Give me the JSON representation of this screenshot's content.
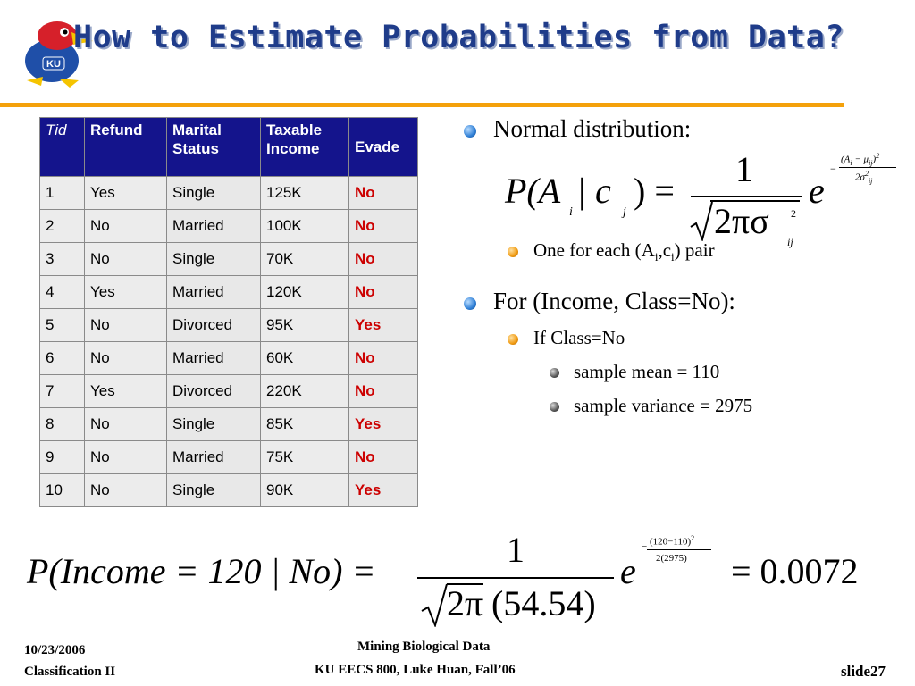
{
  "slide": {
    "title": "How to Estimate Probabilities from Data?"
  },
  "table": {
    "headers": [
      "Tid",
      "Refund",
      "Marital Status",
      "Taxable Income",
      "Evade"
    ],
    "rows": [
      [
        "1",
        "Yes",
        "Single",
        "125K",
        "No"
      ],
      [
        "2",
        "No",
        "Married",
        "100K",
        "No"
      ],
      [
        "3",
        "No",
        "Single",
        "70K",
        "No"
      ],
      [
        "4",
        "Yes",
        "Married",
        "120K",
        "No"
      ],
      [
        "5",
        "No",
        "Divorced",
        "95K",
        "Yes"
      ],
      [
        "6",
        "No",
        "Married",
        "60K",
        "No"
      ],
      [
        "7",
        "Yes",
        "Divorced",
        "220K",
        "No"
      ],
      [
        "8",
        "No",
        "Single",
        "85K",
        "Yes"
      ],
      [
        "9",
        "No",
        "Married",
        "75K",
        "No"
      ],
      [
        "10",
        "No",
        "Single",
        "90K",
        "Yes"
      ]
    ]
  },
  "bullets": {
    "normal": "Normal distribution:",
    "one_each_pre": "One for each (A",
    "one_each_i": "i",
    "one_each_mid": ",c",
    "one_each_j": "i",
    "one_each_post": ") pair",
    "for_income": "For (Income, Class=No):",
    "if_class": "If Class=No",
    "mean": "sample mean = 110",
    "variance": "sample variance = 2975"
  },
  "formula1": {
    "lhs": "P(A",
    "sub_i": "i",
    "bar_c": " | c",
    "sub_j": "j",
    "close": ") =",
    "numerator": "1",
    "denominator": "2πσ",
    "sigma_sup": "2",
    "sigma_sub": "ij",
    "e": "e",
    "exp_num": "(A",
    "exp_num_i": "i",
    "exp_num_mid": " − μ",
    "exp_num_ij": "ij",
    "exp_num_close": ")",
    "exp_num_sup": "2",
    "exp_den": "2σ",
    "exp_den_sup": "2",
    "exp_den_sub": "ij",
    "minus": "−"
  },
  "formula2": {
    "lhs": "P(Income = 120 | No) =",
    "numerator": "1",
    "den_2pi": "2π",
    "den_value": "(54.54)",
    "e": "e",
    "exp_num": "(120−110)",
    "exp_sup": "2",
    "exp_den": "2(2975)",
    "minus": "−",
    "result": "= 0.0072"
  },
  "footer": {
    "date": "10/23/2006",
    "topic": "Classification II",
    "course_line1": "Mining Biological Data",
    "course_line2": "KU EECS 800, Luke Huan, Fall’06",
    "slide_no": "slide27"
  },
  "colors": {
    "title": "#1f3c8a",
    "rule": "#f4a10b",
    "header_bg": "#14148c",
    "evade_text": "#cc0000"
  }
}
